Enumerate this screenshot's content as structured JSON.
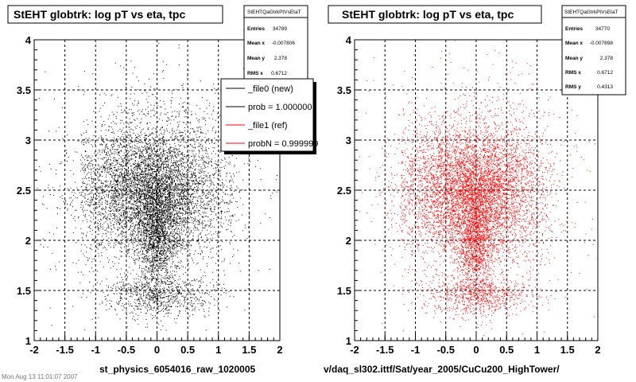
{
  "footer_text": "Mon Aug 13 11:01:07 2007",
  "chart_data": [
    {
      "type": "scatter",
      "title": "StEHT globtrk: log pT vs eta, tpc",
      "xlabel": "st_physics_6054016_raw_1020005",
      "xlim": [
        -2,
        2
      ],
      "ylim": [
        1,
        4
      ],
      "xticks": [
        "-2",
        "-1.5",
        "-1",
        "-0.5",
        "0",
        "0.5",
        "1",
        "1.5",
        "2"
      ],
      "yticks": [
        "1",
        "1.5",
        "2",
        "2.5",
        "3",
        "3.5",
        "4"
      ],
      "grid": true,
      "marker_color": "#000000",
      "stats": {
        "name": "StEHTQaGtrkPtVsEtaT",
        "rows": [
          {
            "label": "Entries",
            "value": "34789"
          },
          {
            "label": "Mean x",
            "value": "-0.007806"
          },
          {
            "label": "Mean y",
            "value": "2.378"
          },
          {
            "label": "RMS x",
            "value": "0.6712"
          }
        ]
      },
      "legend": {
        "placement": "top-right",
        "entries": [
          {
            "label": "_file0 (new)",
            "color": "#000000"
          },
          {
            "label": "prob = 1.000000",
            "color": "#000000"
          },
          {
            "label": "_file1 (ref)",
            "color": "#ff0000"
          },
          {
            "label": "probN = 0.999999",
            "color": "#ff0000"
          }
        ]
      },
      "distribution": [
        {
          "cx": -0.1,
          "cy": 2.5,
          "sx": 0.6,
          "sy": 0.33,
          "weight": 0.58
        },
        {
          "cx": 0.0,
          "cy": 2.05,
          "sx": 0.17,
          "sy": 0.3,
          "weight": 0.17
        },
        {
          "cx": 0.05,
          "cy": 1.45,
          "sx": 0.45,
          "sy": 0.1,
          "weight": 0.08
        },
        {
          "cx": 0.0,
          "cy": 2.55,
          "sx": 1.0,
          "sy": 0.55,
          "weight": 0.17
        }
      ]
    },
    {
      "type": "scatter",
      "title": "StEHT globtrk: log pT vs eta, tpc",
      "xlabel": "v/daq_sl302.ittf/Sat/year_2005/CuCu200_HighTower/",
      "xlim": [
        -2,
        2
      ],
      "ylim": [
        1,
        4
      ],
      "xticks": [
        "-2",
        "-1.5",
        "-1",
        "-0.5",
        "0",
        "0.5",
        "1",
        "1.5",
        "2"
      ],
      "yticks": [
        "1",
        "1.5",
        "2",
        "2.5",
        "3",
        "3.5",
        "4"
      ],
      "grid": true,
      "marker_color": "#ff0000",
      "stats": {
        "name": "StEHTQaGtrkPtVsEtaT",
        "rows": [
          {
            "label": "Entries",
            "value": "34770"
          },
          {
            "label": "Mean x",
            "value": "-0.007898"
          },
          {
            "label": "Mean y",
            "value": "2.378"
          },
          {
            "label": "RMS x",
            "value": "0.6712"
          },
          {
            "label": "RMS y",
            "value": "0.4313"
          }
        ]
      },
      "distribution": [
        {
          "cx": -0.1,
          "cy": 2.5,
          "sx": 0.6,
          "sy": 0.33,
          "weight": 0.58
        },
        {
          "cx": 0.0,
          "cy": 2.05,
          "sx": 0.17,
          "sy": 0.3,
          "weight": 0.17
        },
        {
          "cx": 0.05,
          "cy": 1.45,
          "sx": 0.45,
          "sy": 0.1,
          "weight": 0.08
        },
        {
          "cx": 0.0,
          "cy": 2.55,
          "sx": 1.0,
          "sy": 0.55,
          "weight": 0.17
        }
      ]
    }
  ]
}
